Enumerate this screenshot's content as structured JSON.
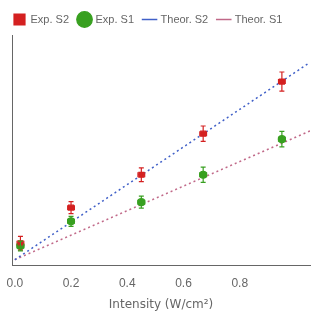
{
  "chart_data": {
    "type": "scatter",
    "xlabel": "Intensity (W/cm²)",
    "xlim": [
      -0.01,
      1.05
    ],
    "xticks": [
      {
        "value": 0,
        "label": "0.0"
      },
      0.2,
      0.4,
      0.6,
      0.8
    ],
    "ylim": [
      -0.02,
      0.82
    ],
    "yticks": [],
    "tick_labels": "x",
    "grid": false,
    "legend": "upper left",
    "series": [
      {
        "name": "Exp. S2",
        "type": "scatter",
        "marker": "square",
        "color": "#d42020",
        "x": [
          0.02,
          0.2,
          0.45,
          0.67,
          0.95
        ],
        "values": [
          0.06,
          0.19,
          0.31,
          0.46,
          0.65
        ],
        "xerr": [
          0.012,
          0.012,
          0.012,
          0.012,
          0.012
        ],
        "yerr": [
          0.025,
          0.022,
          0.025,
          0.028,
          0.035
        ]
      },
      {
        "name": "Exp. S1",
        "type": "scatter",
        "marker": "circle",
        "color": "#38a020",
        "x": [
          0.02,
          0.2,
          0.45,
          0.67,
          0.95
        ],
        "values": [
          0.05,
          0.14,
          0.21,
          0.31,
          0.44
        ],
        "xerr": [
          0.012,
          0.012,
          0.012,
          0.012,
          0.012
        ],
        "yerr": [
          0.018,
          0.018,
          0.022,
          0.028,
          0.028
        ]
      },
      {
        "name": "Theor. S2",
        "type": "line",
        "line_style": "dotted",
        "color": "#4060c8",
        "x": [
          0.0,
          1.05
        ],
        "values": [
          0.0,
          0.72
        ]
      },
      {
        "name": "Theor. S1",
        "type": "line",
        "line_style": "dotted",
        "color": "#c06888",
        "x": [
          0.0,
          1.05
        ],
        "values": [
          0.0,
          0.47
        ]
      }
    ]
  }
}
